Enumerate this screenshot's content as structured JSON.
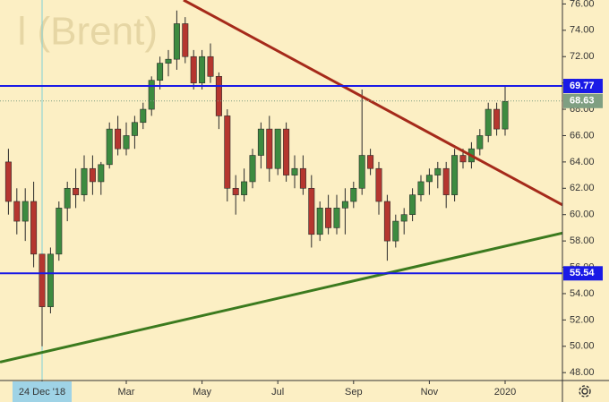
{
  "chart_data": {
    "type": "candlestick",
    "watermark": "l (Brent)",
    "categories": [
      null,
      null,
      null,
      null,
      "24 Dec '18",
      null,
      null,
      null,
      null,
      null,
      null,
      null,
      null,
      null,
      "Mar",
      null,
      null,
      null,
      null,
      null,
      null,
      null,
      null,
      "May",
      null,
      null,
      null,
      null,
      null,
      null,
      null,
      null,
      "Jul",
      null,
      null,
      null,
      null,
      null,
      null,
      null,
      null,
      "Sep",
      null,
      null,
      null,
      null,
      null,
      null,
      null,
      null,
      "Nov",
      null,
      null,
      null,
      null,
      null,
      null,
      null,
      null,
      "2020",
      null,
      null,
      null,
      null,
      null,
      null
    ],
    "open": [
      64,
      61,
      59.5,
      61,
      57,
      53,
      57,
      60.5,
      62,
      61.5,
      63.5,
      62.5,
      63.8,
      66.5,
      65,
      66,
      67,
      68,
      70.2,
      71.5,
      71.8,
      74.5,
      72,
      70,
      72,
      70.5,
      67.5,
      62,
      61.5,
      62.5,
      64.5,
      66.5,
      63.5,
      66.5,
      63,
      63.5,
      62,
      58.5,
      60.5,
      59,
      60.5,
      61,
      62,
      64.5,
      63.5,
      61,
      58,
      59.5,
      60,
      61.5,
      62.5,
      63,
      63.5,
      61.5,
      64.5,
      64,
      65,
      66,
      68,
      66.5,
      null,
      null,
      null,
      null,
      null,
      null
    ],
    "high": [
      65,
      62,
      62,
      62.5,
      57,
      57.5,
      61,
      62.5,
      63.5,
      64.5,
      64.5,
      64,
      67,
      67.5,
      67,
      67.5,
      68.5,
      70.5,
      72,
      72.5,
      75.5,
      75,
      72.5,
      72.5,
      73,
      70.8,
      68,
      63,
      63.5,
      65,
      67,
      67.5,
      66.5,
      67,
      64.5,
      64.5,
      63,
      61,
      61.5,
      61.5,
      62,
      62.5,
      69.5,
      65,
      64,
      61.5,
      60,
      60.5,
      62,
      63,
      63.5,
      64,
      64,
      65,
      65,
      65.5,
      66.5,
      68.5,
      68.5,
      69.7,
      null,
      null,
      null,
      null,
      null,
      null
    ],
    "low": [
      60,
      58.5,
      58,
      56,
      50,
      52.5,
      56.5,
      59.5,
      60.5,
      61,
      61.5,
      61.5,
      63.5,
      64.5,
      64.5,
      65,
      66.5,
      67.5,
      69.5,
      70.5,
      71,
      71.5,
      69.5,
      69.5,
      70,
      66.5,
      61,
      60,
      61,
      62,
      63.5,
      62.5,
      63,
      62.5,
      62,
      61.5,
      57.5,
      58,
      58.5,
      58.5,
      58.5,
      60.5,
      61.5,
      63,
      60,
      56.5,
      57.5,
      58.5,
      59.5,
      61,
      61.5,
      62,
      60.5,
      61,
      63.5,
      63.5,
      64.5,
      65.5,
      66,
      66,
      null,
      null,
      null,
      null,
      null,
      null
    ],
    "close": [
      61,
      59.5,
      61,
      57,
      53,
      57,
      60.5,
      62,
      61.5,
      63.5,
      62.5,
      63.8,
      66.5,
      65,
      66,
      67,
      68,
      70.2,
      71.5,
      71.8,
      74.5,
      72,
      70,
      72,
      70.5,
      67.5,
      62,
      61.5,
      62.5,
      64.5,
      66.5,
      63.5,
      66.5,
      63,
      63.5,
      62,
      58.5,
      60.5,
      59,
      60.5,
      61,
      62,
      64.5,
      63.5,
      61,
      58,
      59.5,
      60,
      61.5,
      62.5,
      63,
      63.5,
      61.5,
      64.5,
      64,
      65,
      66,
      68,
      66.5,
      68.6,
      null,
      null,
      null,
      null,
      null,
      null
    ],
    "up_color": "#3d8b40",
    "down_color": "#b5362f",
    "ylim": [
      47.4,
      76.3
    ],
    "yticks": [
      {
        "value": 48,
        "label": "48.00"
      },
      {
        "value": 50,
        "label": "50.00"
      },
      {
        "value": 52,
        "label": "52.00"
      },
      {
        "value": 54,
        "label": "54.00"
      },
      {
        "value": 56,
        "label": "56.00"
      },
      {
        "value": 58,
        "label": "58.00"
      },
      {
        "value": 60,
        "label": "60.00"
      },
      {
        "value": 62,
        "label": "62.00"
      },
      {
        "value": 64,
        "label": "64.00"
      },
      {
        "value": 66,
        "label": "66.00"
      },
      {
        "value": 68,
        "label": "68.00"
      },
      {
        "value": 70,
        "label": "70.00"
      },
      {
        "value": 72,
        "label": "72.00"
      },
      {
        "value": 74,
        "label": "74.00"
      },
      {
        "value": 76,
        "label": "76.00"
      }
    ],
    "hlines": [
      {
        "value": 69.77,
        "color": "#1a1ae6"
      },
      {
        "value": 55.54,
        "color": "#1a1ae6"
      }
    ],
    "last_price": {
      "value": 68.63,
      "color": "#7f9f82"
    },
    "trendlines": [
      {
        "color": "#a52a1a",
        "x": [
          20.8,
          65.8
        ],
        "y": [
          76.3,
          60.74
        ]
      },
      {
        "color": "#3b7a1e",
        "x": [
          -1.0,
          65.8
        ],
        "y": [
          48.8,
          58.6
        ]
      }
    ],
    "crosshair_index": 4
  }
}
